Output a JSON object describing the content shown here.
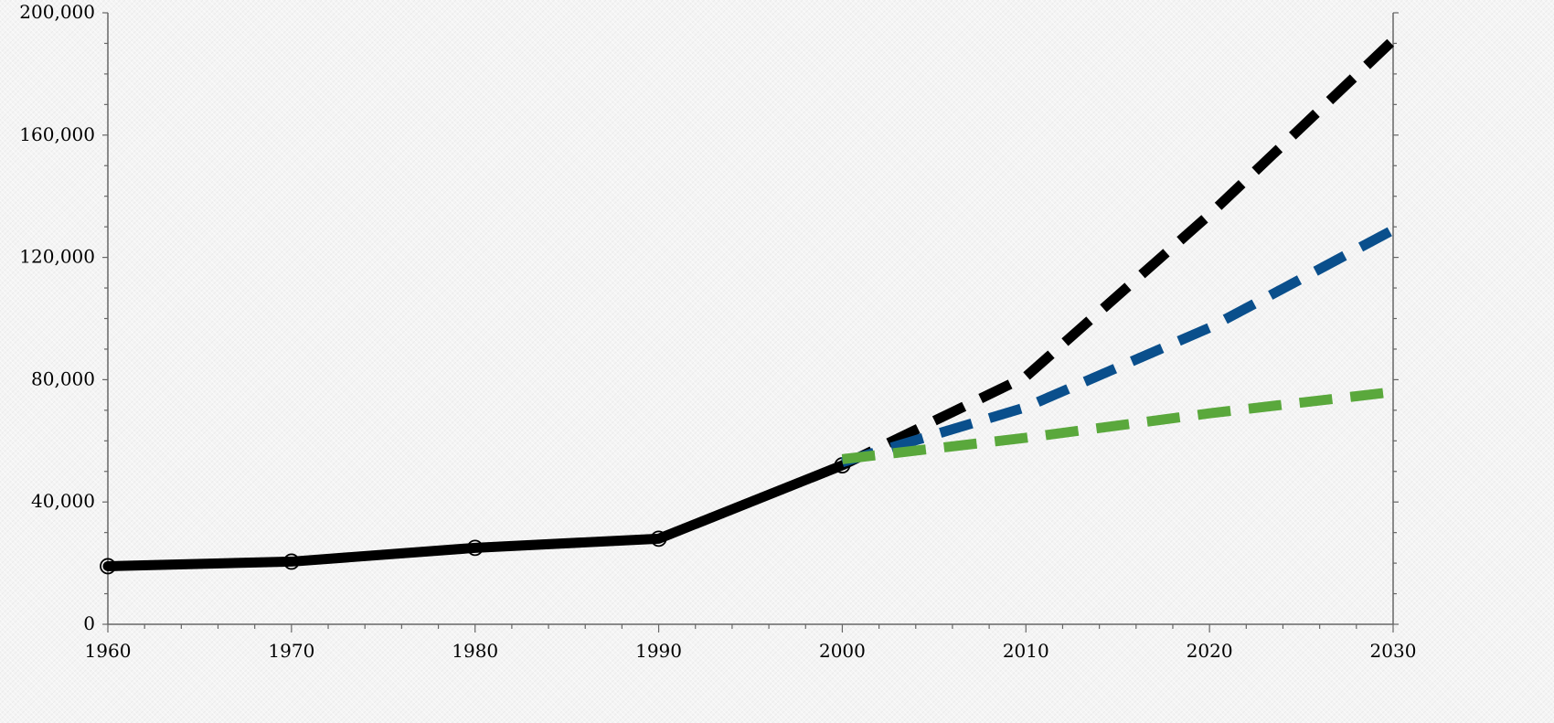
{
  "chart_data": {
    "type": "line",
    "title": "",
    "xlabel": "",
    "ylabel": "",
    "xlim": [
      1960,
      2030
    ],
    "ylim": [
      0,
      200000
    ],
    "x_ticks": [
      "1960",
      "1970",
      "1980",
      "1990",
      "2000",
      "2010",
      "2020",
      "2030"
    ],
    "y_ticks": [
      "0",
      "40,000",
      "80,000",
      "120,000",
      "160,000",
      "200,000"
    ],
    "grid": false,
    "legend": "none",
    "series": [
      {
        "color": "#000000",
        "style": "solid",
        "markers": true,
        "x": [
          1960,
          1970,
          1980,
          1990,
          2000
        ],
        "y": [
          19000,
          20500,
          25000,
          28000,
          52000
        ]
      },
      {
        "color": "#000000",
        "style": "dashed",
        "markers": false,
        "x": [
          2000,
          2010,
          2020,
          2030
        ],
        "y": [
          52000,
          81000,
          134000,
          191000
        ]
      },
      {
        "color": "#0a4f8c",
        "style": "dashed",
        "markers": false,
        "x": [
          2000,
          2010,
          2020,
          2030
        ],
        "y": [
          53000,
          71000,
          97000,
          129000
        ]
      },
      {
        "color": "#5aa83c",
        "style": "dashed",
        "markers": false,
        "x": [
          2000,
          2010,
          2020,
          2030
        ],
        "y": [
          54000,
          61000,
          69000,
          76000
        ]
      }
    ]
  }
}
